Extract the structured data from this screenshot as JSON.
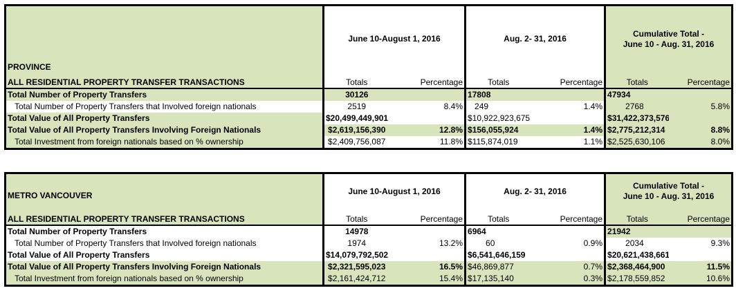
{
  "columns": {
    "period1": "June 10-August 1, 2016",
    "period2": "Aug. 2- 31, 2016",
    "cumulative_line1": "Cumulative Total -",
    "cumulative_line2": "June 10 - Aug. 31, 2016",
    "totals": "Totals",
    "percentage": "Percentage",
    "section_label": "ALL RESIDENTIAL PROPERTY TRANSFER TRANSACTIONS"
  },
  "province": {
    "title": "PROVINCE",
    "rows": [
      {
        "label": "Total Number of Property Transfers",
        "p1_total": "30126",
        "p1_pct": "",
        "p2_total": "17808",
        "p2_pct": "",
        "cum_total": "47934",
        "cum_pct": ""
      },
      {
        "label": "Total Number of Property Transfers that Involved foreign nationals",
        "p1_total": "2519",
        "p1_pct": "8.4%",
        "p2_total": "249",
        "p2_pct": "1.4%",
        "cum_total": "2768",
        "cum_pct": "5.8%"
      },
      {
        "label": "Total Value of All Property Transfers",
        "p1_total": "$20,499,449,901",
        "p1_pct": "",
        "p2_total": "$10,922,923,675",
        "p2_pct": "",
        "cum_total": "$31,422,373,576",
        "cum_pct": ""
      },
      {
        "label": "Total Value of All Property Transfers Involving Foreign Nationals",
        "p1_total": "$2,619,156,390",
        "p1_pct": "12.8%",
        "p2_total": "$156,055,924",
        "p2_pct": "1.4%",
        "cum_total": "$2,775,212,314",
        "cum_pct": "8.8%"
      },
      {
        "label": "Total Investment from foreign nationals based on % ownership",
        "p1_total": "$2,409,756,087",
        "p1_pct": "11.8%",
        "p2_total": "$115,874,019",
        "p2_pct": "1.1%",
        "cum_total": "$2,525,630,106",
        "cum_pct": "8.0%"
      }
    ]
  },
  "metro": {
    "title": "METRO VANCOUVER",
    "rows": [
      {
        "label": "Total Number of Property Transfers",
        "p1_total": "14978",
        "p1_pct": "",
        "p2_total": "6964",
        "p2_pct": "",
        "cum_total": "21942",
        "cum_pct": ""
      },
      {
        "label": "Total Number of Property Transfers that Involved foreign nationals",
        "p1_total": "1974",
        "p1_pct": "13.2%",
        "p2_total": "60",
        "p2_pct": "0.9%",
        "cum_total": "2034",
        "cum_pct": "9.3%"
      },
      {
        "label": "Total Value of All Property Transfers",
        "p1_total": "$14,079,792,502",
        "p1_pct": "",
        "p2_total": "$6,541,646,159",
        "p2_pct": "",
        "cum_total": "$20,621,438,661",
        "cum_pct": ""
      },
      {
        "label": "Total Value of All Property Transfers Involving Foreign Nationals",
        "p1_total": "$2,321,595,023",
        "p1_pct": "16.5%",
        "p2_total": "$46,869,877",
        "p2_pct": "0.7%",
        "cum_total": "$2,368,464,900",
        "cum_pct": "11.5%"
      },
      {
        "label": "Total Investment from foreign nationals based on % ownership",
        "p1_total": "$2,161,424,712",
        "p1_pct": "15.4%",
        "p2_total": "$17,135,140",
        "p2_pct": "0.3%",
        "cum_total": "$2,178,559,852",
        "cum_pct": "10.6%"
      }
    ]
  }
}
